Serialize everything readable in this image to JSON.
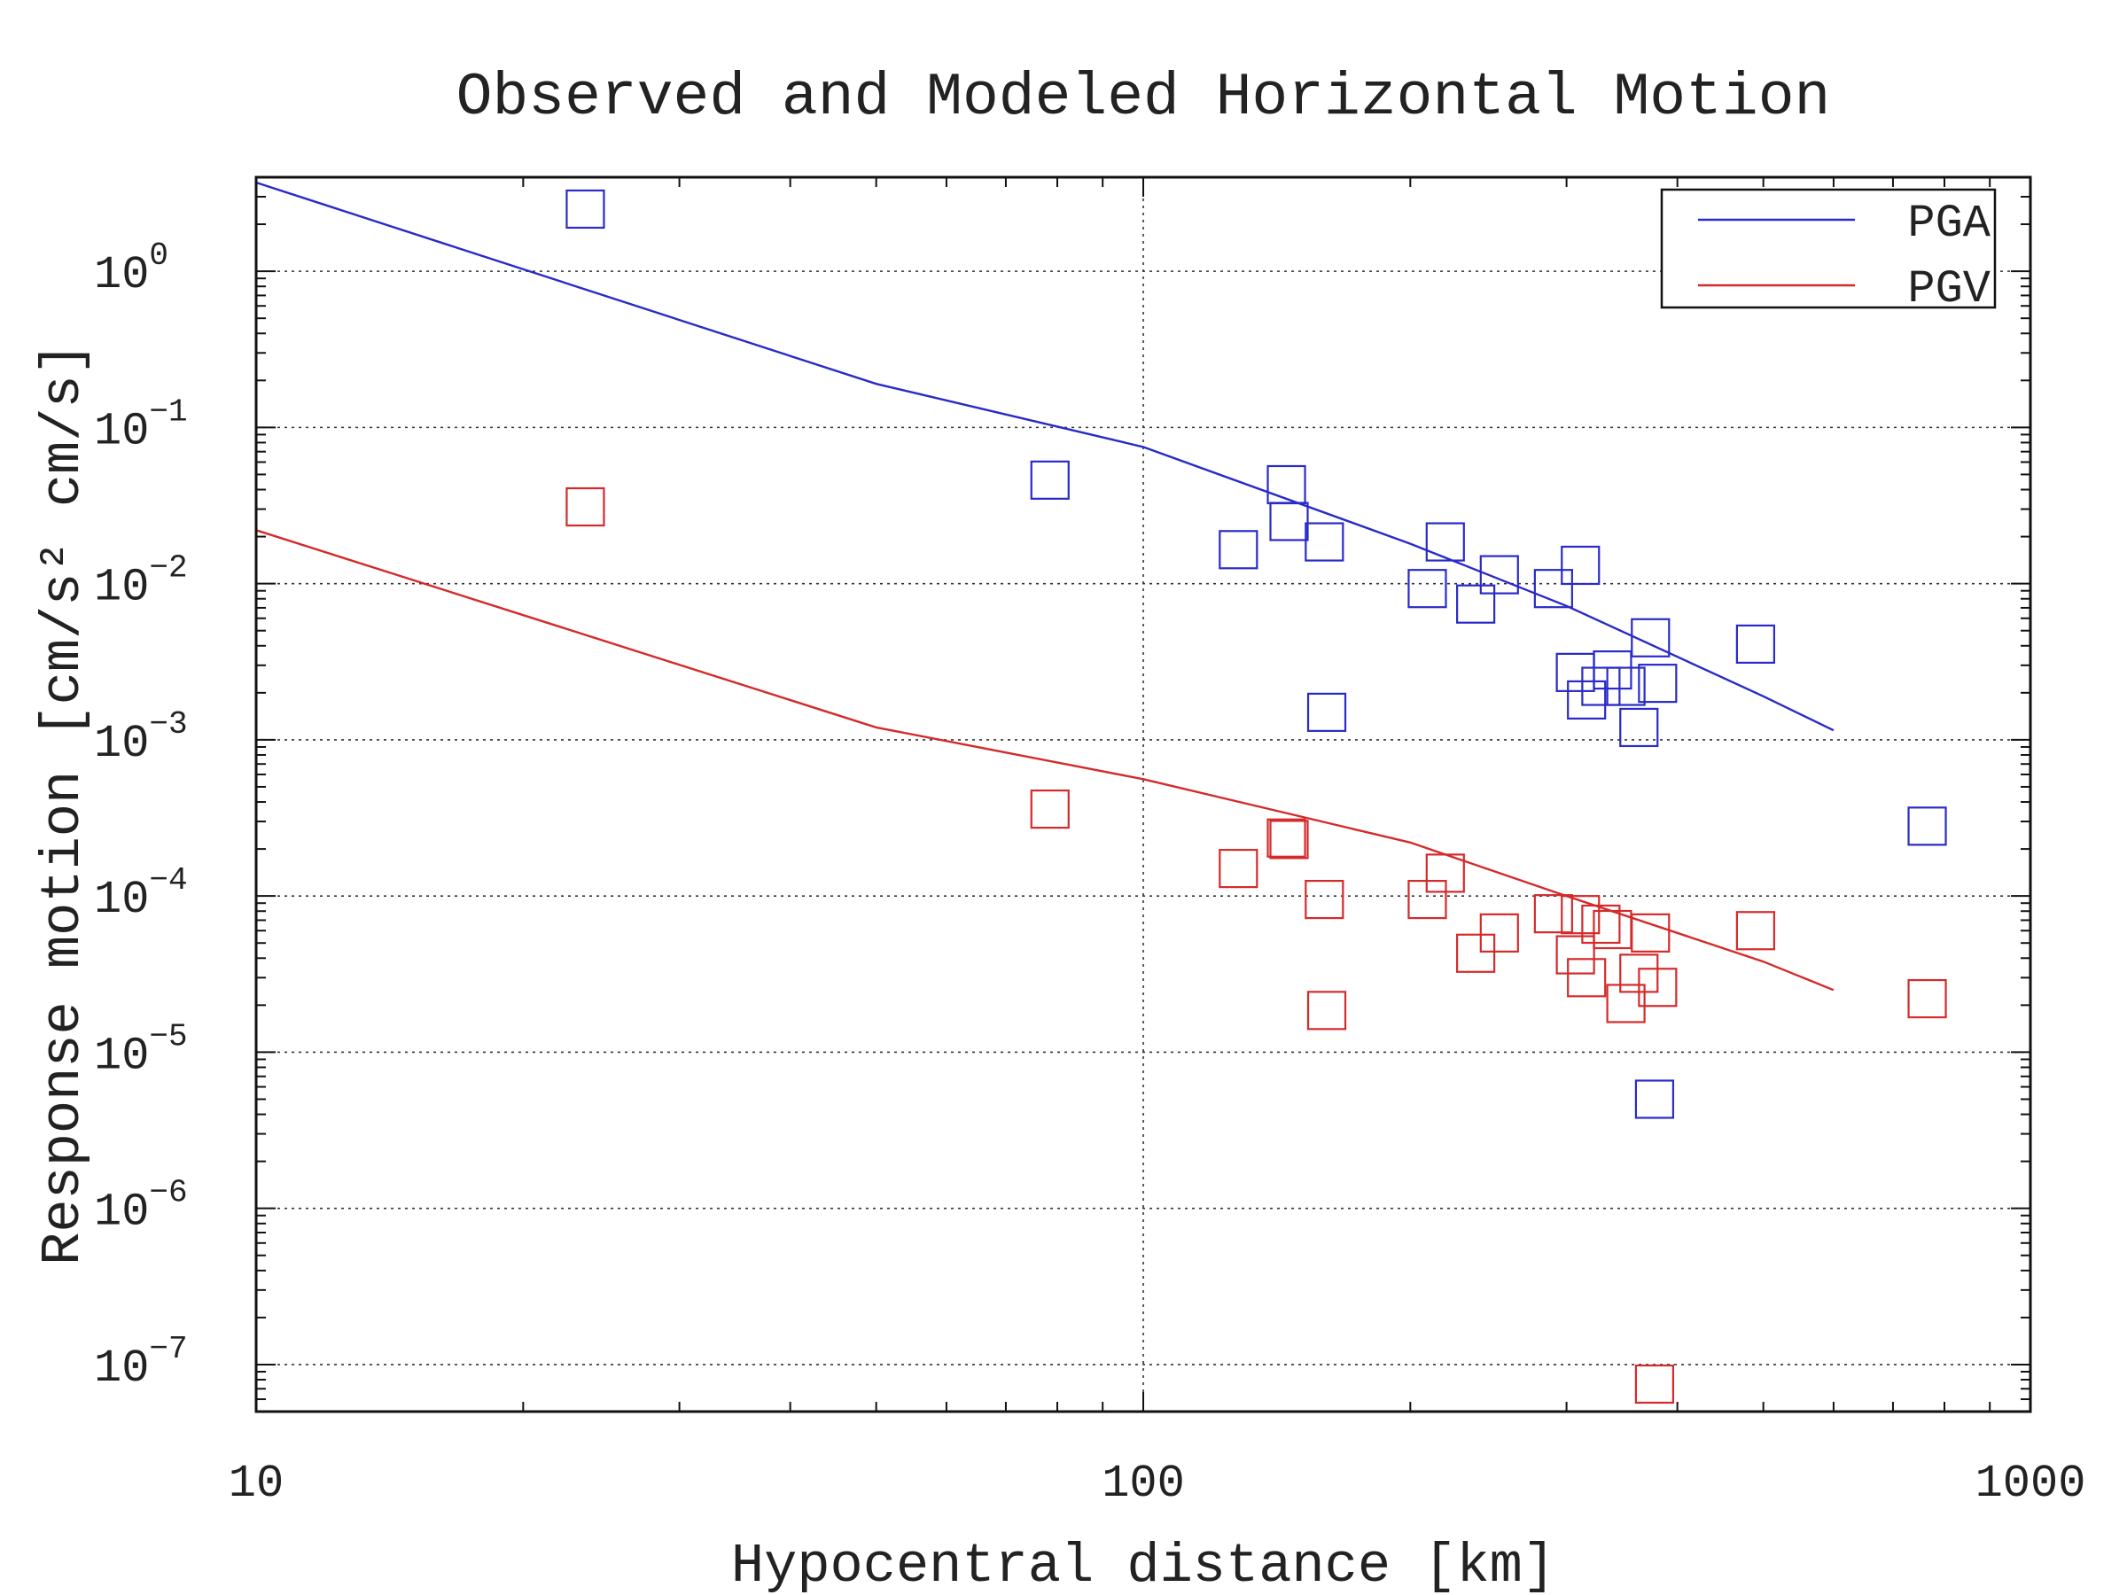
{
  "chart_data": {
    "type": "scatter",
    "title": "Observed and Modeled Horizontal Motion",
    "xlabel": "Hypocentral distance [km]",
    "ylabel": "Response motion [cm/s² cm/s]",
    "xscale": "log",
    "yscale": "log",
    "xlim": [
      10,
      1000
    ],
    "ylim": [
      5e-08,
      4
    ],
    "x_ticks": [
      {
        "value": 10,
        "label": "10"
      },
      {
        "value": 100,
        "label": "100"
      },
      {
        "value": 1000,
        "label": "1000"
      }
    ],
    "y_ticks": [
      {
        "value": 1,
        "base": "10",
        "exp": "0"
      },
      {
        "value": 0.1,
        "base": "10",
        "exp": "−1"
      },
      {
        "value": 0.01,
        "base": "10",
        "exp": "−2"
      },
      {
        "value": 0.001,
        "base": "10",
        "exp": "−3"
      },
      {
        "value": 0.0001,
        "base": "10",
        "exp": "−4"
      },
      {
        "value": 1e-05,
        "base": "10",
        "exp": "−5"
      },
      {
        "value": 1e-06,
        "base": "10",
        "exp": "−6"
      },
      {
        "value": 1e-07,
        "base": "10",
        "exp": "−7"
      }
    ],
    "grid": true,
    "legend_position": "top-right",
    "series": [
      {
        "name": "PGA",
        "kind": "line",
        "color": "#2a2ac8",
        "x": [
          10,
          50,
          100,
          200,
          300,
          500,
          600
        ],
        "y": [
          3.7,
          0.19,
          0.075,
          0.018,
          0.0072,
          0.0019,
          0.00115
        ]
      },
      {
        "name": "PGV",
        "kind": "line",
        "color": "#d42a2a",
        "x": [
          10,
          50,
          100,
          200,
          300,
          500,
          600
        ],
        "y": [
          0.022,
          0.0012,
          0.00056,
          0.00022,
          0.0001,
          3.8e-05,
          2.5e-05
        ]
      },
      {
        "kind": "markers",
        "marker": "square",
        "color": "#2a2ac8",
        "x": [
          23.5,
          78.5,
          145,
          146,
          128,
          160,
          161,
          219,
          209,
          237,
          252,
          290,
          311,
          307,
          316,
          328,
          338,
          350,
          362,
          380,
          373,
          490,
          765,
          377
        ],
        "y": [
          2.5,
          0.046,
          0.043,
          0.025,
          0.0165,
          0.0185,
          0.0015,
          0.0185,
          0.0093,
          0.0074,
          0.0114,
          0.0093,
          0.0131,
          0.0027,
          0.0018,
          0.0022,
          0.0028,
          0.0022,
          0.0012,
          0.0023,
          0.0045,
          0.0041,
          0.00028,
          5e-06
        ]
      },
      {
        "kind": "markers",
        "marker": "square",
        "color": "#d42a2a",
        "x": [
          23.5,
          78.5,
          145,
          146,
          128,
          160,
          161,
          219,
          209,
          237,
          252,
          290,
          311,
          307,
          316,
          328,
          338,
          350,
          362,
          380,
          373,
          490,
          765,
          377
        ],
        "y": [
          0.031,
          0.00036,
          0.000235,
          0.00023,
          0.00015,
          9.5e-05,
          1.85e-05,
          0.00014,
          9.5e-05,
          4.3e-05,
          5.8e-05,
          7.7e-05,
          7.6e-05,
          4.2e-05,
          3e-05,
          6.6e-05,
          6.1e-05,
          2.05e-05,
          3.2e-05,
          2.6e-05,
          5.8e-05,
          6e-05,
          2.2e-05,
          7.5e-08
        ]
      }
    ]
  }
}
